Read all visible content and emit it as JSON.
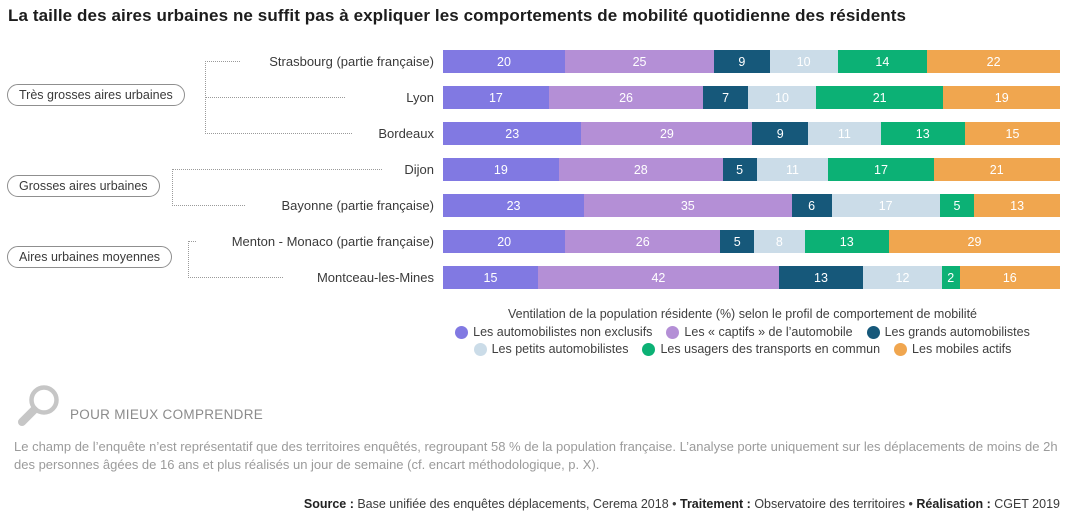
{
  "title": "La taille des aires urbaines ne suffit pas à expliquer les comportements de mobilité quotidienne des résidents",
  "chart_data": {
    "type": "bar",
    "subtype": "horizontal-stacked-100",
    "unit": "%",
    "legend_title": "Ventilation de la population résidente (%) selon le profil de comportement de mobilité",
    "legend_position": "bottom",
    "value_labels": "inside, white",
    "series": [
      {
        "name": "Les automobilistes non exclusifs",
        "color": "#8179E2"
      },
      {
        "name": "Les « captifs » de l’automobile",
        "color": "#B48FD6"
      },
      {
        "name": "Les grands automobilistes",
        "color": "#16587A"
      },
      {
        "name": "Les petits automobilistes",
        "color": "#CBDCE8"
      },
      {
        "name": "Les usagers des transports en commun",
        "color": "#0CB175"
      },
      {
        "name": "Les mobiles actifs",
        "color": "#F0A64F"
      }
    ],
    "groups": [
      {
        "label": "Très grosses aires urbaines",
        "cities": [
          "Strasbourg (partie française)",
          "Lyon",
          "Bordeaux"
        ]
      },
      {
        "label": "Grosses aires urbaines",
        "cities": [
          "Dijon",
          "Bayonne (partie française)"
        ]
      },
      {
        "label": "Aires urbaines moyennes",
        "cities": [
          "Menton - Monaco (partie française)",
          "Montceau-les-Mines"
        ]
      }
    ],
    "rows": [
      {
        "label": "Strasbourg (partie française)",
        "values": [
          20,
          25,
          9,
          10,
          14,
          22
        ]
      },
      {
        "label": "Lyon",
        "values": [
          17,
          26,
          7,
          10,
          21,
          19
        ]
      },
      {
        "label": "Bordeaux",
        "values": [
          23,
          29,
          9,
          11,
          13,
          15
        ]
      },
      {
        "label": "Dijon",
        "values": [
          19,
          28,
          5,
          11,
          17,
          21
        ]
      },
      {
        "label": "Bayonne (partie française)",
        "values": [
          23,
          35,
          6,
          17,
          5,
          13
        ]
      },
      {
        "label": "Menton - Monaco (partie française)",
        "values": [
          20,
          26,
          5,
          8,
          13,
          29
        ]
      },
      {
        "label": "Montceau-les-Mines",
        "values": [
          15,
          42,
          13,
          12,
          2,
          16
        ]
      }
    ]
  },
  "note": {
    "heading": "POUR MIEUX COMPRENDRE",
    "icon": "magnifier-icon",
    "text": "Le champ de l’enquête n’est représentatif que des territoires enquêtés, regroupant 58 % de la population française. L’analyse porte uniquement sur les déplacements de moins de 2h des personnes âgées de 16 ans et plus réalisés un jour de semaine (cf. encart méthodologique, p. X)."
  },
  "source": {
    "label1": "Source :",
    "text1": " Base unifiée des enquêtes déplacements, Cerema 2018 • ",
    "label2": "Traitement :",
    "text2": " Observatoire des territoires • ",
    "label3": "Réalisation :",
    "text3": " CGET 2019"
  }
}
